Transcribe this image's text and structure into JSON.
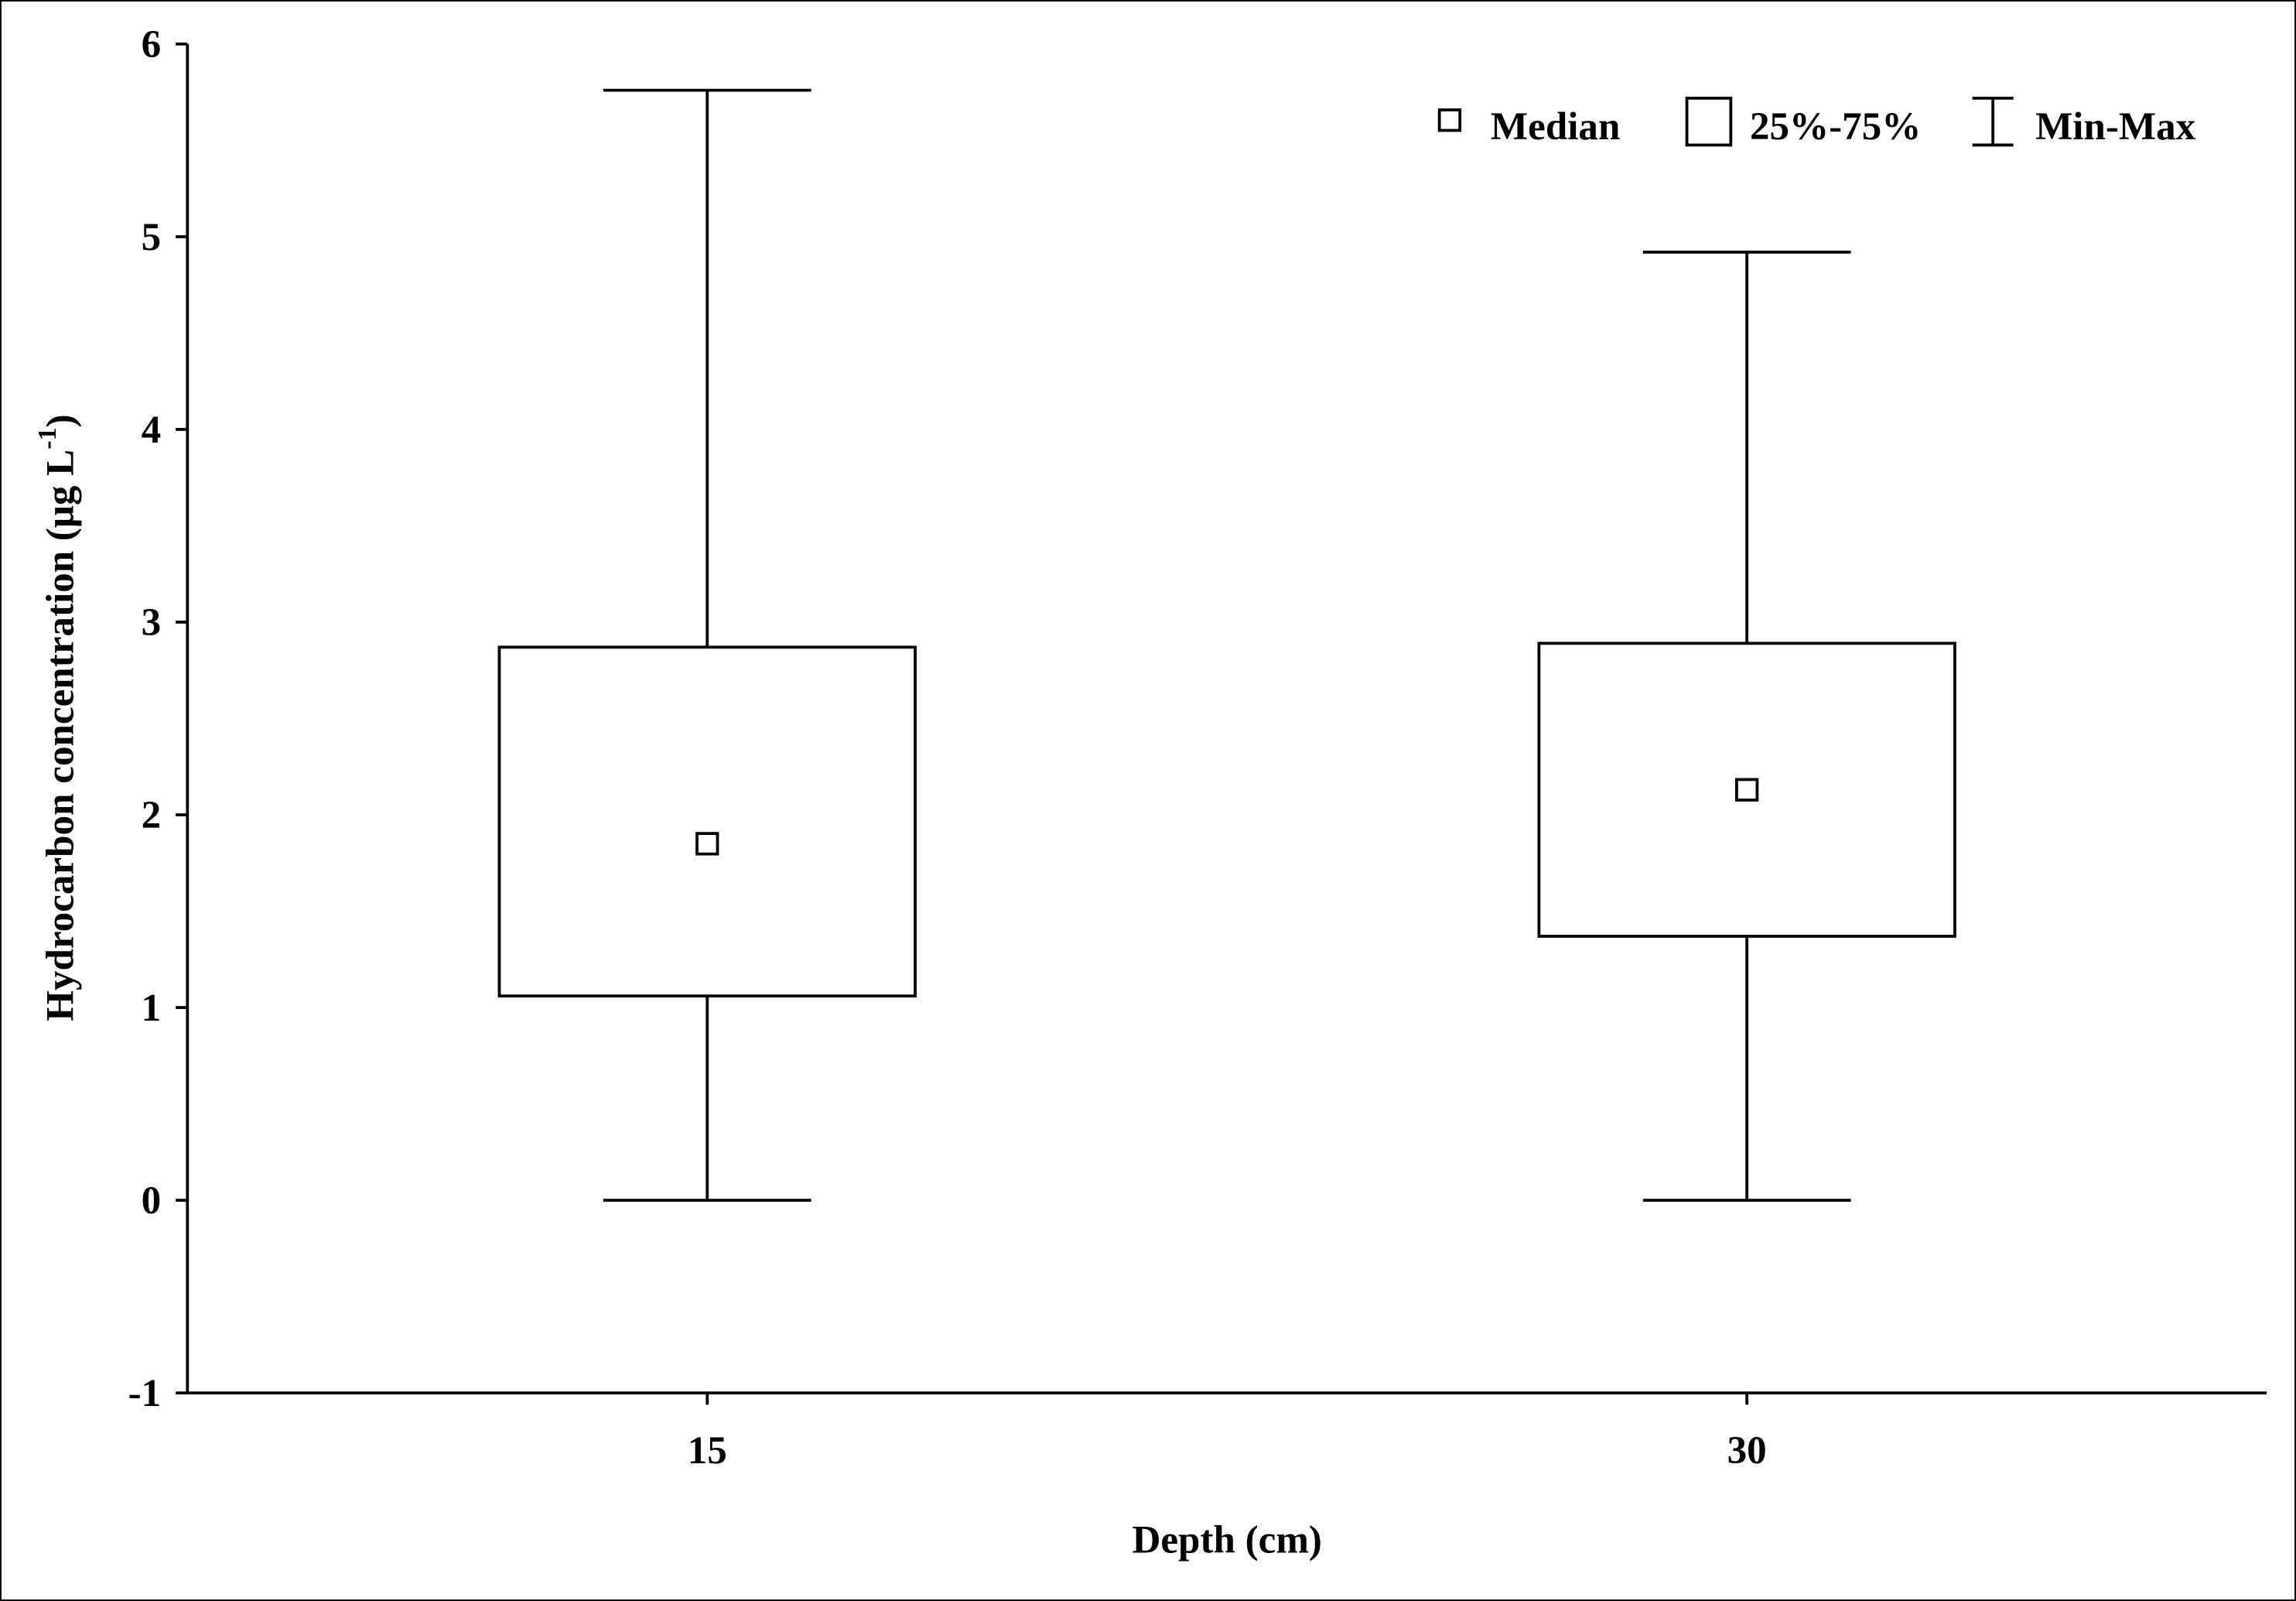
{
  "chart_data": {
    "type": "box",
    "x_label": "Depth (cm)",
    "y_label": {
      "text": "Hydrocarbon concentration  (μg L",
      "superscript": "-1",
      "end": ")"
    },
    "categories": [
      "15",
      "30"
    ],
    "min": [
      0,
      0
    ],
    "q1": [
      1.06,
      1.37
    ],
    "median": [
      1.85,
      2.13
    ],
    "q3": [
      2.87,
      2.89
    ],
    "max": [
      5.76,
      4.92
    ],
    "legend": {
      "median": "Median",
      "box": "25%-75%",
      "whisker": "Min-Max"
    },
    "ylim": [
      -1,
      6
    ],
    "yticks": [
      -1,
      0,
      1,
      2,
      3,
      4,
      5,
      6
    ],
    "color": "#000000",
    "grid": false
  }
}
